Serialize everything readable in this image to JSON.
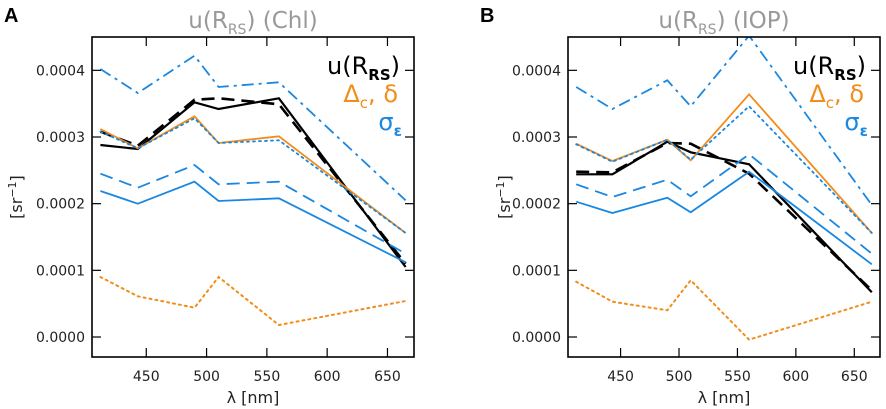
{
  "colors": {
    "black": "#000000",
    "orange": "#f28c1a",
    "blue": "#1a87e0",
    "title_gray": "#999999",
    "frame": "#000000"
  },
  "chart_data": [
    {
      "type": "line",
      "panel_letter": "A",
      "title": "u(R",
      "title_sub": "RS",
      "title_suffix": ") (Chl)",
      "xlabel": "λ [nm]",
      "ylabel": "[sr",
      "ylabel_sup": "−1",
      "ylabel_suffix": "]",
      "xlim": [
        405,
        672
      ],
      "ylim": [
        -3e-05,
        0.00045
      ],
      "xticks": [
        450,
        500,
        550,
        600,
        650
      ],
      "xtick_labels": [
        "450",
        "500",
        "550",
        "600",
        "650"
      ],
      "yticks": [
        0.0,
        0.0001,
        0.0002,
        0.0003,
        0.0004
      ],
      "ytick_labels": [
        "0.0000",
        "0.0001",
        "0.0002",
        "0.0003",
        "0.0004"
      ],
      "x": [
        412,
        443,
        490,
        510,
        560,
        665
      ],
      "legend": {
        "line1": "u(R",
        "line1_sub": "RS",
        "line1_suffix": ")",
        "line2a": "Δ",
        "line2a_sub": "c",
        "line2_sep": ",",
        "line2b": "δ",
        "line3": "σ",
        "line3_sub": "ε"
      },
      "series": [
        {
          "name": "u(R_RS) solid",
          "color": "black",
          "dash": "solid",
          "width": 2.2,
          "values": [
            0.000288,
            0.000282,
            0.000352,
            0.000342,
            0.000358,
            0.000105
          ]
        },
        {
          "name": "u(R_RS) dashed",
          "color": "black",
          "dash": "dashed",
          "width": 2.6,
          "values": [
            0.000308,
            0.000287,
            0.000356,
            0.000358,
            0.000349,
            0.00011
          ]
        },
        {
          "name": "Delta_c",
          "color": "orange",
          "dash": "solid",
          "width": 1.8,
          "values": [
            0.000312,
            0.000283,
            0.000331,
            0.000291,
            0.000301,
            0.000156
          ]
        },
        {
          "name": "delta",
          "color": "orange",
          "dash": "dotted",
          "width": 2.0,
          "values": [
            9e-05,
            6.1e-05,
            4.4e-05,
            9e-05,
            1.8e-05,
            5.4e-05
          ]
        },
        {
          "name": "sigma_eps solid",
          "color": "blue",
          "dash": "solid",
          "width": 1.8,
          "values": [
            0.000219,
            0.0002,
            0.000233,
            0.000204,
            0.000208,
            0.000112
          ]
        },
        {
          "name": "sigma_eps dashed",
          "color": "blue",
          "dash": "dashed",
          "width": 1.8,
          "values": [
            0.000245,
            0.000224,
            0.000258,
            0.000229,
            0.000233,
            0.000125
          ]
        },
        {
          "name": "sigma_eps dash-dot",
          "color": "blue",
          "dash": "dashdot",
          "width": 1.8,
          "values": [
            0.000402,
            0.000366,
            0.000422,
            0.000375,
            0.000382,
            0.000205
          ]
        },
        {
          "name": "sigma_eps dotted",
          "color": "blue",
          "dash": "dotted",
          "width": 1.8,
          "values": [
            0.000308,
            0.000283,
            0.000328,
            0.000291,
            0.000295,
            0.000156
          ]
        }
      ]
    },
    {
      "type": "line",
      "panel_letter": "B",
      "title": "u(R",
      "title_sub": "RS",
      "title_suffix": ") (IOP)",
      "xlabel": "λ [nm]",
      "ylabel": "[sr",
      "ylabel_sup": "−1",
      "ylabel_suffix": "]",
      "xlim": [
        405,
        672
      ],
      "ylim": [
        -3e-05,
        0.00045
      ],
      "xticks": [
        450,
        500,
        550,
        600,
        650
      ],
      "xtick_labels": [
        "450",
        "500",
        "550",
        "600",
        "650"
      ],
      "yticks": [
        0.0,
        0.0001,
        0.0002,
        0.0003,
        0.0004
      ],
      "ytick_labels": [
        "0.0000",
        "0.0001",
        "0.0002",
        "0.0003",
        "0.0004"
      ],
      "x": [
        412,
        443,
        490,
        510,
        560,
        665
      ],
      "legend": {
        "line1": "u(R",
        "line1_sub": "RS",
        "line1_suffix": ")",
        "line2a": "Δ",
        "line2a_sub": "c",
        "line2_sep": ",",
        "line2b": "δ",
        "line3": "σ",
        "line3_sub": "ε"
      },
      "series": [
        {
          "name": "u(R_RS) solid",
          "color": "black",
          "dash": "solid",
          "width": 2.2,
          "values": [
            0.000244,
            0.000244,
            0.000293,
            0.000277,
            0.000259,
            6.7e-05
          ]
        },
        {
          "name": "u(R_RS) dashed",
          "color": "black",
          "dash": "dashed",
          "width": 2.6,
          "values": [
            0.000248,
            0.000247,
            0.000291,
            0.00029,
            0.000245,
            7e-05
          ]
        },
        {
          "name": "Delta_c",
          "color": "orange",
          "dash": "solid",
          "width": 1.8,
          "values": [
            0.00029,
            0.000264,
            0.000296,
            0.000265,
            0.000364,
            0.000156
          ]
        },
        {
          "name": "delta",
          "color": "orange",
          "dash": "dotted",
          "width": 2.0,
          "values": [
            8.3e-05,
            5.3e-05,
            4e-05,
            8.5e-05,
            -4e-06,
            5.3e-05
          ]
        },
        {
          "name": "sigma_eps solid",
          "color": "blue",
          "dash": "solid",
          "width": 1.8,
          "values": [
            0.000203,
            0.000186,
            0.000209,
            0.000187,
            0.000248,
            0.000109
          ]
        },
        {
          "name": "sigma_eps dashed",
          "color": "blue",
          "dash": "dashed",
          "width": 1.8,
          "values": [
            0.000229,
            0.00021,
            0.000236,
            0.000211,
            0.000274,
            0.000125
          ]
        },
        {
          "name": "sigma_eps dash-dot",
          "color": "blue",
          "dash": "dashdot",
          "width": 1.8,
          "values": [
            0.000375,
            0.000342,
            0.000385,
            0.000346,
            0.000452,
            0.000198
          ]
        },
        {
          "name": "sigma_eps dotted",
          "color": "blue",
          "dash": "dotted",
          "width": 1.8,
          "values": [
            0.000289,
            0.000263,
            0.000296,
            0.000266,
            0.000346,
            0.000156
          ]
        }
      ]
    }
  ]
}
